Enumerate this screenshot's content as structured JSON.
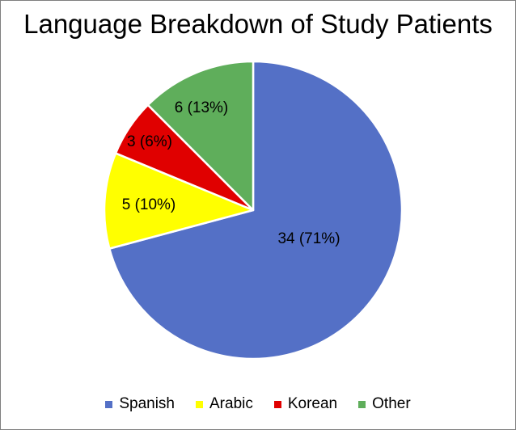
{
  "chart_data": {
    "type": "pie",
    "title": "Language Breakdown of Study Patients",
    "legend_position": "bottom",
    "slices": [
      {
        "name": "Spanish",
        "value": 34,
        "percent": 71,
        "label": "34 (71%)",
        "color": "#5470C6"
      },
      {
        "name": "Arabic",
        "value": 5,
        "percent": 10,
        "label": "5 (10%)",
        "color": "#FFFF00"
      },
      {
        "name": "Korean",
        "value": 3,
        "percent": 6,
        "label": "3 (6%)",
        "color": "#E00000"
      },
      {
        "name": "Other",
        "value": 6,
        "percent": 13,
        "label": "6 (13%)",
        "color": "#5FAE5B"
      }
    ]
  }
}
